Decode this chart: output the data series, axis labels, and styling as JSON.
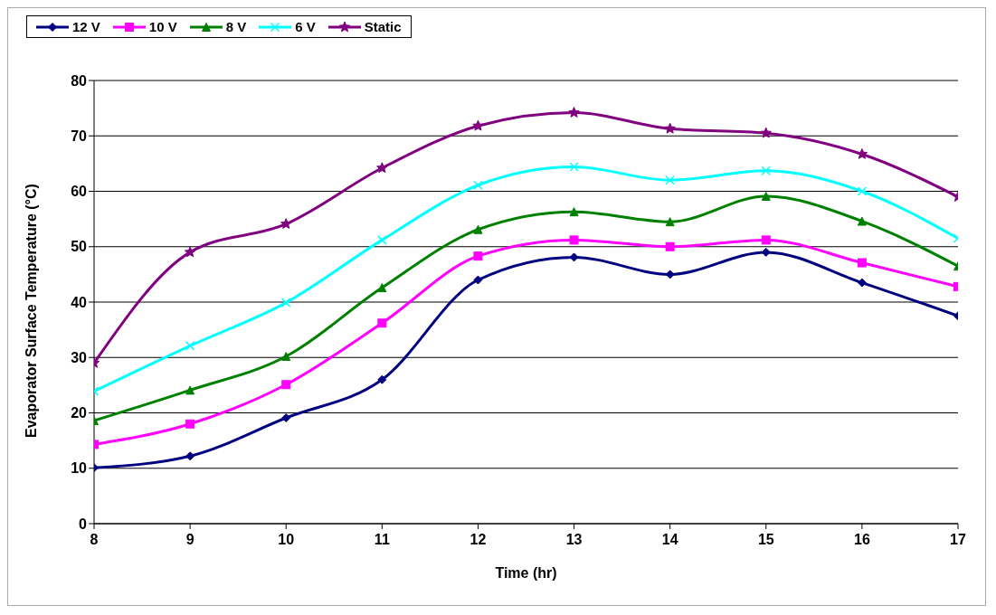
{
  "chart_data": {
    "type": "line",
    "xlabel": "Time (hr)",
    "ylabel": "Evaporator Surface Temperature (°C)",
    "x": [
      8,
      9,
      10,
      11,
      12,
      13,
      14,
      15,
      16,
      17
    ],
    "xlim": [
      8,
      17
    ],
    "xticks": [
      8,
      9,
      10,
      11,
      12,
      13,
      14,
      15,
      16,
      17
    ],
    "ylim": [
      0,
      80
    ],
    "yticks": [
      0,
      10,
      20,
      30,
      40,
      50,
      60,
      70,
      80
    ],
    "grid": "y",
    "legend": "top",
    "series": [
      {
        "name": "12 V",
        "color": "#000080",
        "marker": "diamond",
        "values": [
          10.1,
          12.2,
          19.1,
          26,
          44,
          48.1,
          45,
          49,
          43.5,
          37.5
        ]
      },
      {
        "name": "10 V",
        "color": "#ff00ff",
        "marker": "square",
        "values": [
          14.3,
          18,
          25.1,
          36.2,
          48.3,
          51.2,
          50,
          51.2,
          47.1,
          42.8
        ]
      },
      {
        "name": "8 V",
        "color": "#008000",
        "marker": "triangle",
        "values": [
          18.6,
          24.1,
          30.2,
          42.6,
          53.1,
          56.3,
          54.5,
          59.1,
          54.6,
          46.5
        ]
      },
      {
        "name": "6 V",
        "color": "#00ffff",
        "marker": "cross",
        "values": [
          23.9,
          32.1,
          39.9,
          51.2,
          61.1,
          64.4,
          62,
          63.7,
          60,
          51.5
        ]
      },
      {
        "name": "Static",
        "color": "#800080",
        "marker": "star",
        "values": [
          29,
          49,
          54.1,
          64.2,
          71.8,
          74.2,
          71.3,
          70.5,
          66.7,
          59
        ]
      }
    ]
  }
}
